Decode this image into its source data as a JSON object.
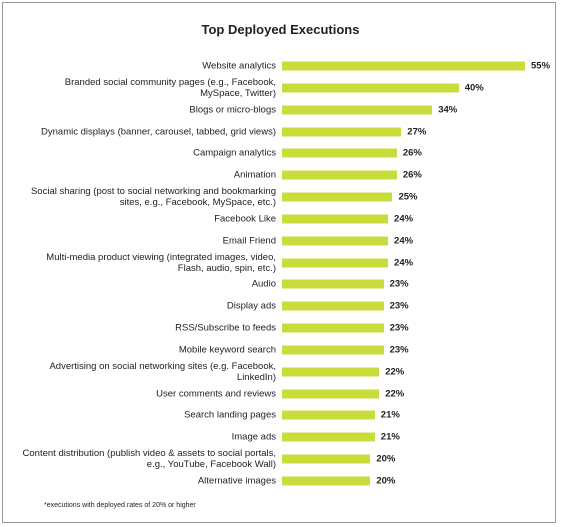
{
  "chart_data": {
    "type": "bar",
    "orientation": "horizontal",
    "title": "Top Deployed Executions",
    "categories": [
      "Website analytics",
      "Branded social community pages (e.g., Facebook, MySpace, Twitter)",
      "Blogs or micro-blogs",
      "Dynamic displays  (banner, carousel, tabbed, grid  views)",
      "Campaign analytics",
      "Animation",
      "Social sharing (post to social networking and bookmarking sites, e.g., Facebook, MySpace, etc.)",
      "Facebook Like",
      "Email Friend",
      "Multi-media product viewing (integrated images, video, Flash, audio, spin, etc.)",
      "Audio",
      "Display ads",
      "RSS/Subscribe to feeds",
      "Mobile keyword search",
      "Advertising on social networking sites (e.g. Facebook, LinkedIn)",
      "User comments and reviews",
      "Search landing pages",
      "Image ads",
      "Content distribution (publish video & assets to social portals, e.g., YouTube, Facebook Wall)",
      "Alternative images"
    ],
    "values": [
      55,
      40,
      34,
      27,
      26,
      26,
      25,
      24,
      24,
      24,
      23,
      23,
      23,
      23,
      22,
      22,
      21,
      21,
      20,
      20
    ],
    "value_labels": [
      "55%",
      "40%",
      "34%",
      "27%",
      "26%",
      "26%",
      "25%",
      "24%",
      "24%",
      "24%",
      "23%",
      "23%",
      "23%",
      "23%",
      "22%",
      "22%",
      "21%",
      "21%",
      "20%",
      "20%"
    ],
    "color": "#c8dc3c",
    "footnote": "*executions with deployed rates  of 20% or higher"
  }
}
